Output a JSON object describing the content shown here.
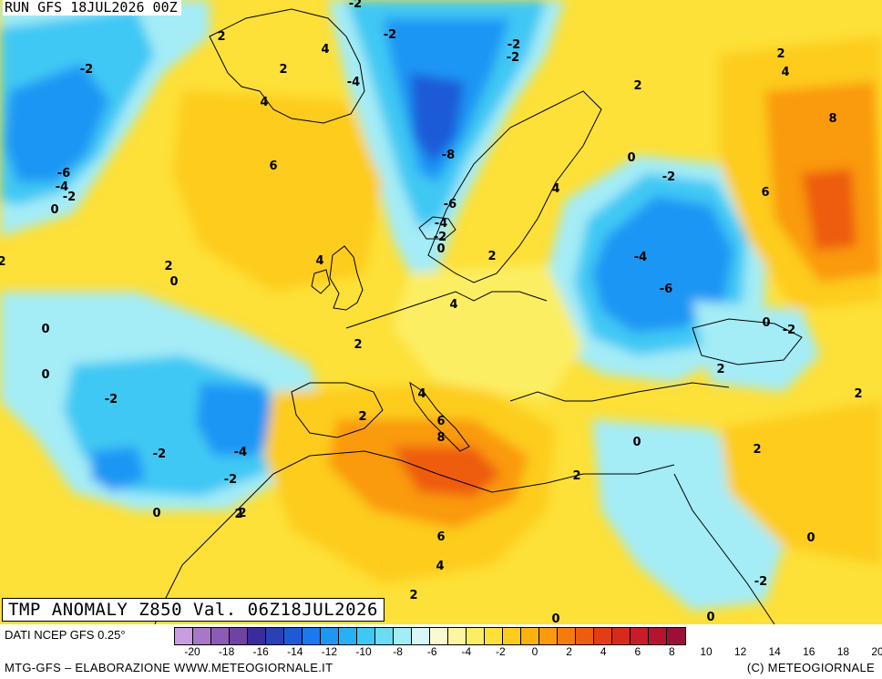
{
  "header": {
    "run_label": "RUN GFS 18JUL2026 00Z",
    "title": "TMP ANOMALY Z850 Val. 06Z18JUL2026"
  },
  "footer": {
    "source": "DATI NCEP GFS 0.25°",
    "credit_left": "MTG-GFS – ELABORAZIONE WWW.METEOGIORNALE.IT",
    "credit_right": "(C) METEOGIORNALE"
  },
  "legend": {
    "ticks": [
      "-20",
      "-18",
      "-16",
      "-14",
      "-12",
      "-10",
      "-8",
      "-6",
      "-4",
      "-2",
      "0",
      "2",
      "4",
      "6",
      "8",
      "10",
      "12",
      "14",
      "16",
      "18",
      "20"
    ],
    "colors": [
      "#c89ee0",
      "#a878c8",
      "#8c5cb4",
      "#6e44a0",
      "#3a2c9c",
      "#2a40b4",
      "#1e5ad8",
      "#1a78f0",
      "#1e96f4",
      "#28b0f4",
      "#40c8f4",
      "#6cdcf4",
      "#a4ecf6",
      "#d8f8f8",
      "#fafad2",
      "#fcf6a0",
      "#fcee64",
      "#fde038",
      "#fdcc1c",
      "#fcb40c",
      "#fa9a0c",
      "#f47c0c",
      "#ee5c10",
      "#e43c14",
      "#d82a1c",
      "#c81c28",
      "#b41430",
      "#9c1038"
    ]
  },
  "map": {
    "colors": {
      "ocean_base": "#fde038",
      "neutral": "#fcee64",
      "cool_light": "#a4ecf6",
      "cool": "#40c8f4",
      "cold": "#1e96f4",
      "colder": "#1e5ad8",
      "warm": "#fdcc1c",
      "warmer": "#fcb40c",
      "hot": "#fa9a0c",
      "hottest": "#ee5c10",
      "coast": "#000000"
    },
    "labels": [
      {
        "text": "2"
      },
      {
        "text": "4"
      },
      {
        "text": "2"
      },
      {
        "text": "-2"
      },
      {
        "text": "4"
      },
      {
        "text": "6"
      },
      {
        "text": "-6"
      },
      {
        "text": "-4"
      },
      {
        "text": "-2"
      },
      {
        "text": "0"
      },
      {
        "text": "-2"
      },
      {
        "text": "-2"
      },
      {
        "text": "-4"
      },
      {
        "text": "-2"
      },
      {
        "text": "-2"
      },
      {
        "text": "-8"
      },
      {
        "text": "-6"
      },
      {
        "text": "-4"
      },
      {
        "text": "-2"
      },
      {
        "text": "0"
      },
      {
        "text": "2"
      },
      {
        "text": "4"
      },
      {
        "text": "2"
      },
      {
        "text": "4"
      },
      {
        "text": "0"
      },
      {
        "text": "-2"
      },
      {
        "text": "-4"
      },
      {
        "text": "-6"
      },
      {
        "text": "0"
      },
      {
        "text": "-2"
      },
      {
        "text": "2"
      },
      {
        "text": "4"
      },
      {
        "text": "8"
      },
      {
        "text": "6"
      },
      {
        "text": "2"
      },
      {
        "text": "2"
      },
      {
        "text": "2"
      },
      {
        "text": "4"
      },
      {
        "text": "2"
      },
      {
        "text": "0"
      },
      {
        "text": "0"
      },
      {
        "text": "0"
      },
      {
        "text": "2"
      },
      {
        "text": "-2"
      },
      {
        "text": "-2"
      },
      {
        "text": "-4"
      },
      {
        "text": "-2"
      },
      {
        "text": "0"
      },
      {
        "text": "2"
      },
      {
        "text": "2"
      },
      {
        "text": "4"
      },
      {
        "text": "6"
      },
      {
        "text": "8"
      },
      {
        "text": "2"
      },
      {
        "text": "0"
      },
      {
        "text": "2"
      },
      {
        "text": "6"
      },
      {
        "text": "4"
      },
      {
        "text": "2"
      },
      {
        "text": "0"
      },
      {
        "text": "0"
      },
      {
        "text": "-2"
      },
      {
        "text": "0"
      },
      {
        "text": "2"
      },
      {
        "text": "2"
      }
    ]
  }
}
